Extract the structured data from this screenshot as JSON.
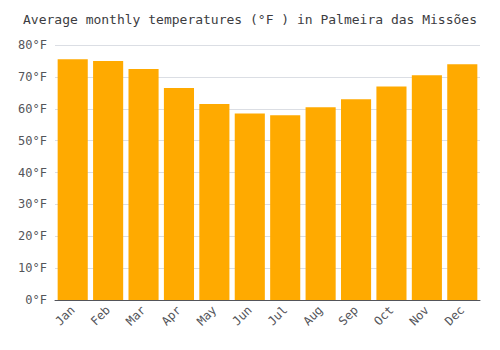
{
  "chart_data": {
    "type": "bar",
    "title": "Average monthly temperatures (°F ) in Palmeira das Missões",
    "categories": [
      "Jan",
      "Feb",
      "Mar",
      "Apr",
      "May",
      "Jun",
      "Jul",
      "Aug",
      "Sep",
      "Oct",
      "Nov",
      "Dec"
    ],
    "values": [
      75.5,
      75.0,
      72.5,
      66.5,
      61.5,
      58.5,
      58.0,
      60.5,
      63.0,
      67.0,
      70.5,
      74.0
    ],
    "color": "#FFAA00",
    "ylim": [
      0,
      80
    ],
    "yticks": [
      {
        "value": 0,
        "label": "0°F"
      },
      {
        "value": 10,
        "label": "10°F"
      },
      {
        "value": 20,
        "label": "20°F"
      },
      {
        "value": 30,
        "label": "30°F"
      },
      {
        "value": 40,
        "label": "40°F"
      },
      {
        "value": 50,
        "label": "50°F"
      },
      {
        "value": 60,
        "label": "60°F"
      },
      {
        "value": 70,
        "label": "70°F"
      },
      {
        "value": 80,
        "label": "80°F"
      }
    ],
    "grid": true
  }
}
